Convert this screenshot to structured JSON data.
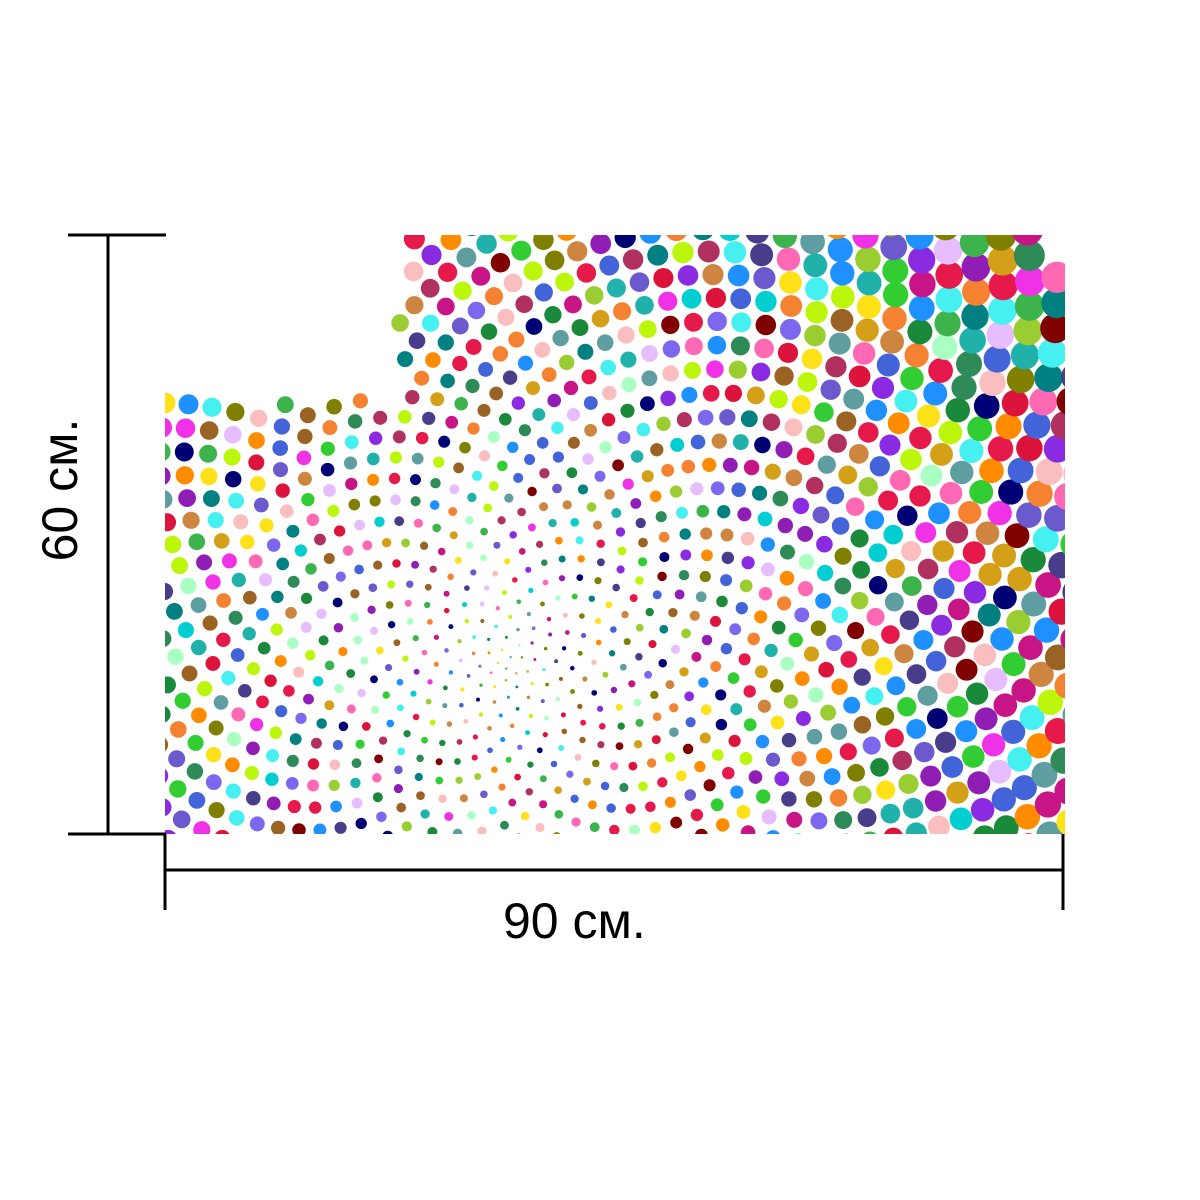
{
  "dimensions": {
    "width_label": "90 см.",
    "height_label": "60 см."
  },
  "artwork": {
    "description_icon": "dot-spiral-pattern",
    "palette": [
      "#e6194b",
      "#3cb44b",
      "#ffe119",
      "#4363d8",
      "#f58231",
      "#911eb4",
      "#46f0f0",
      "#f032e6",
      "#bcf60c",
      "#fabebe",
      "#008080",
      "#e6beff",
      "#9a6324",
      "#800000",
      "#aaffc3",
      "#808000",
      "#000075",
      "#1a8a3a",
      "#d4a017",
      "#6a5acd",
      "#20b2aa",
      "#ff69b4",
      "#2e8b57",
      "#c71585",
      "#7b68ee",
      "#32cd32",
      "#dc143c",
      "#1e90ff",
      "#ff8c00",
      "#8a2be2",
      "#00ced1",
      "#9acd32",
      "#b03060",
      "#5f9ea0",
      "#cd853f",
      "#483d8b"
    ],
    "colors": {
      "background": "#ffffff",
      "lines": "#000000"
    }
  }
}
